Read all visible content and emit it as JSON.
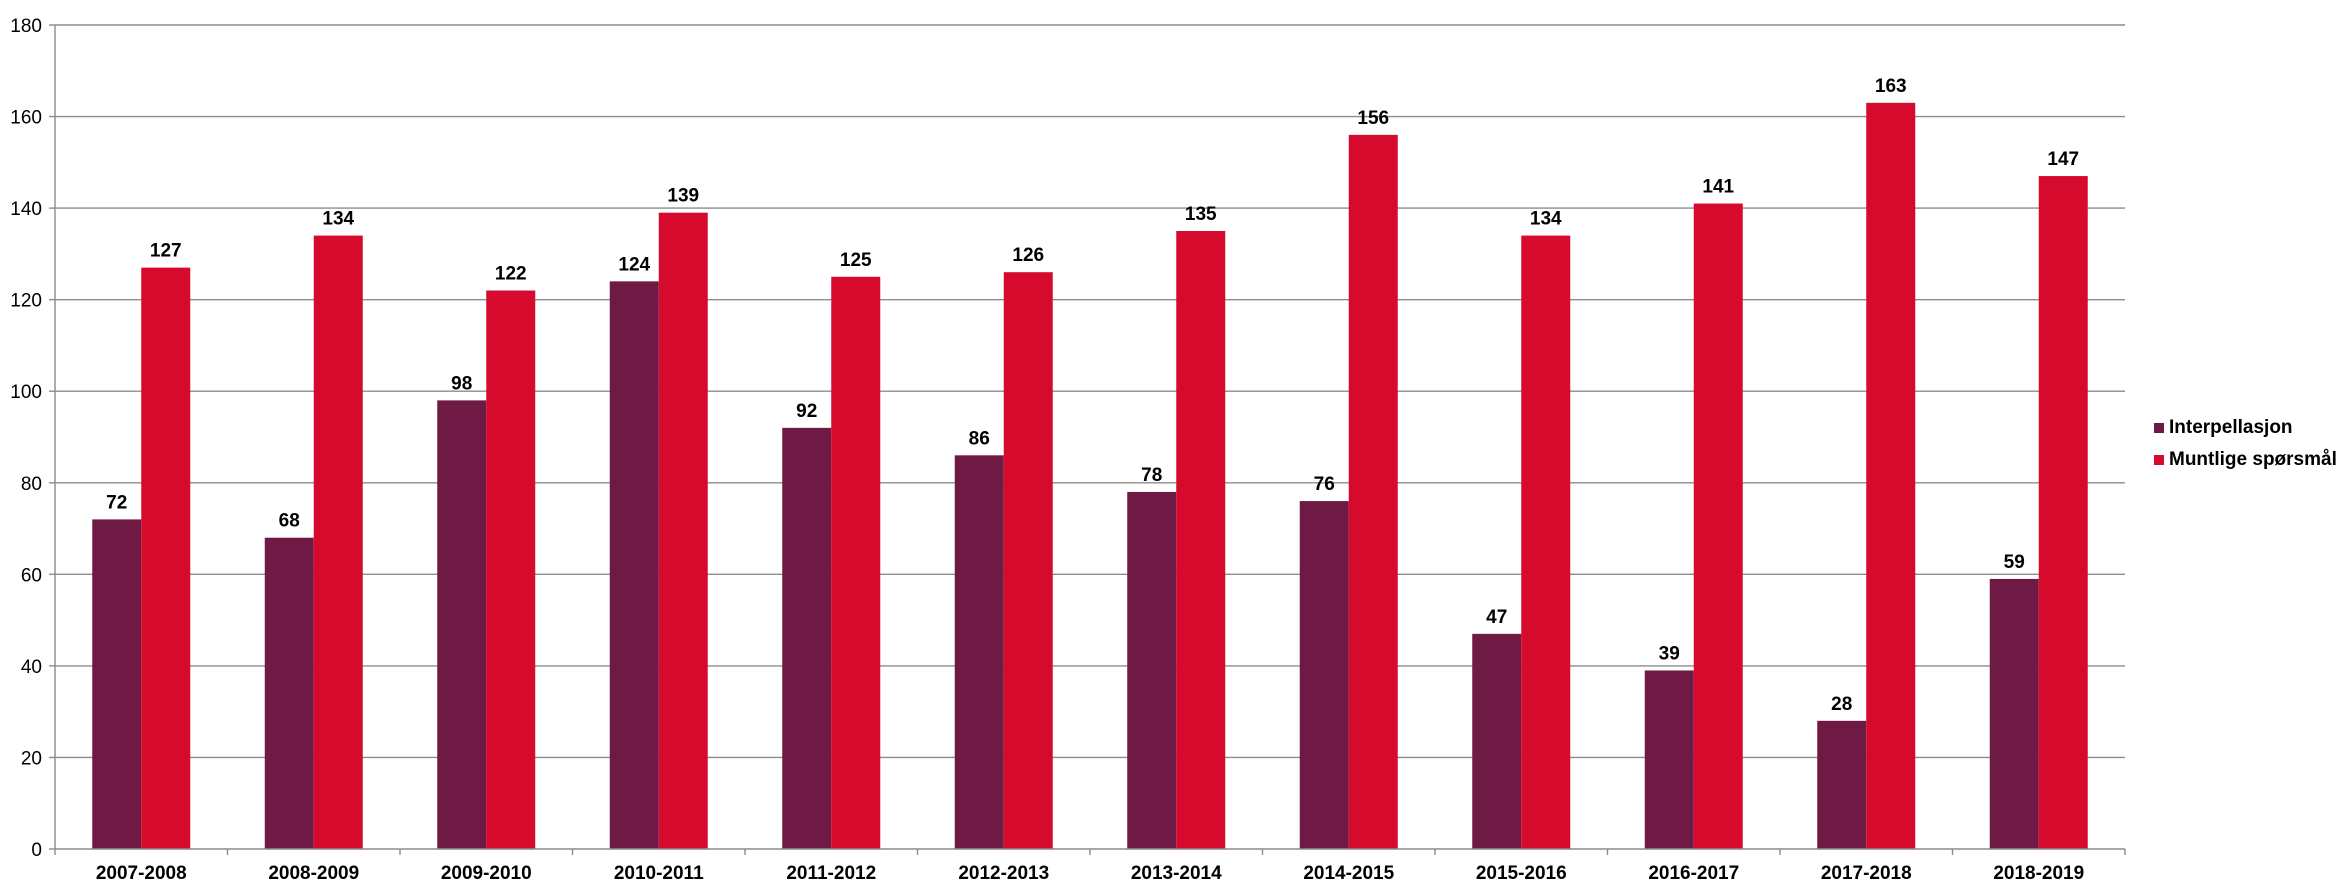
{
  "chart_data": {
    "type": "bar",
    "title": "",
    "xlabel": "",
    "ylabel": "",
    "ylim": [
      0,
      180
    ],
    "yticks": [
      0,
      20,
      40,
      60,
      80,
      100,
      120,
      140,
      160,
      180
    ],
    "grid": true,
    "legend_position": "right",
    "categories": [
      "2007-2008",
      "2008-2009",
      "2009-2010",
      "2010-2011",
      "2011-2012",
      "2012-2013",
      "2013-2014",
      "2014-2015",
      "2015-2016",
      "2016-2017",
      "2017-2018",
      "2018-2019"
    ],
    "series": [
      {
        "name": "Interpellasjon",
        "color": "#6e1a44",
        "values": [
          72,
          68,
          98,
          124,
          92,
          86,
          78,
          76,
          47,
          39,
          28,
          59
        ]
      },
      {
        "name": "Muntlige spørsmål",
        "color": "#d60a2c",
        "values": [
          127,
          134,
          122,
          139,
          125,
          126,
          135,
          156,
          134,
          141,
          163,
          147
        ]
      }
    ]
  }
}
